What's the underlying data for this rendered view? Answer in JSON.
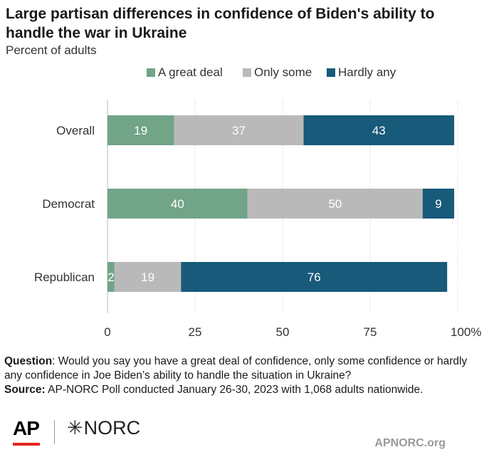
{
  "title": "Large partisan differences in confidence of Biden's ability to handle the war in Ukraine",
  "subtitle": "Percent of adults",
  "colors": {
    "great_deal": "#72a488",
    "only_some": "#b9b9b9",
    "hardly_any": "#175a7a"
  },
  "chart_data": {
    "type": "bar",
    "orientation": "horizontal",
    "stacked": true,
    "categories": [
      "Overall",
      "Democrat",
      "Republican"
    ],
    "series": [
      {
        "name": "A great deal",
        "values": [
          19,
          40,
          2
        ]
      },
      {
        "name": "Only some",
        "values": [
          37,
          50,
          19
        ]
      },
      {
        "name": "Hardly any",
        "values": [
          43,
          9,
          76
        ]
      }
    ],
    "xlim": [
      0,
      100
    ],
    "x_ticks": [
      "0",
      "25",
      "50",
      "75",
      "100%"
    ],
    "grid": true,
    "legend_position": "top"
  },
  "footer": {
    "question_label": "Question",
    "question_text": ": Would you say you have a great deal of confidence, only some confidence or hardly any confidence in Joe Biden’s ability to handle the situation in Ukraine?",
    "source_label": "Source:",
    "source_text": " AP-NORC Poll conducted January 26-30, 2023 with 1,068 adults nationwide."
  },
  "logos": {
    "ap": "AP",
    "norc": "NORC",
    "site": "APNORC.org"
  }
}
